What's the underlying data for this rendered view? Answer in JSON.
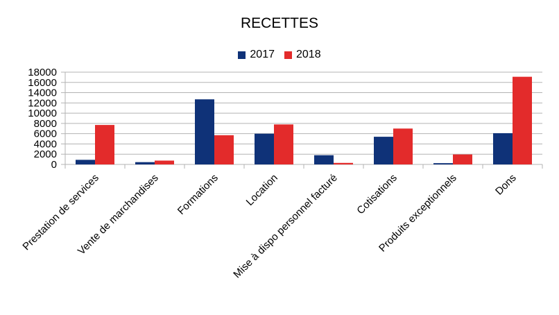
{
  "colors": {
    "2017": "#0f3278",
    "2018": "#e32b2b",
    "grid": "#b3b3b3",
    "axis": "#b3b3b3"
  },
  "chart_data": {
    "type": "bar",
    "title": "RECETTES",
    "legend_position": "top",
    "grid": true,
    "ylim": [
      0,
      18000
    ],
    "yticks": [
      "0",
      "2000",
      "4000",
      "6000",
      "8000",
      "10000",
      "12000",
      "14000",
      "16000",
      "18000"
    ],
    "categories": [
      "Prestation de services",
      "Vente de marchandises",
      "Formations",
      "Location",
      "Mise à dispo personnel facturé",
      "Cotisations",
      "Produits exceptionnels",
      "Dons"
    ],
    "series": [
      {
        "name": "2017",
        "color": "#0f3278",
        "values": [
          900,
          450,
          12700,
          6000,
          1800,
          5400,
          250,
          6100
        ]
      },
      {
        "name": "2018",
        "color": "#e32b2b",
        "values": [
          7700,
          750,
          5700,
          7800,
          300,
          7000,
          1950,
          17100
        ]
      }
    ]
  }
}
